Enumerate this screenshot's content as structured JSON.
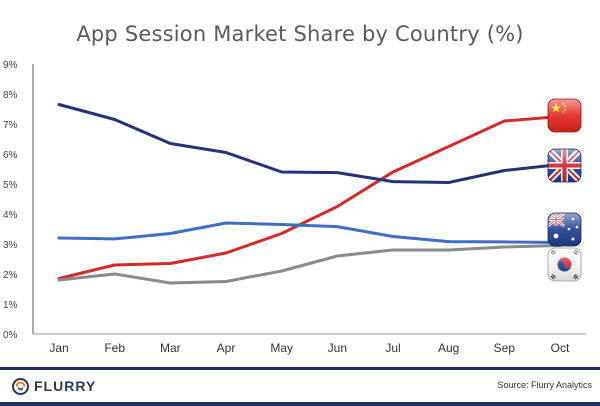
{
  "chart_data": {
    "type": "line",
    "title": "App Session Market Share by Country (%)",
    "xlabel": "",
    "ylabel": "",
    "ylim": [
      0,
      9
    ],
    "yticks": [
      "0%",
      "1%",
      "2%",
      "3%",
      "4%",
      "5%",
      "6%",
      "7%",
      "8%",
      "9%"
    ],
    "categories": [
      "Jan",
      "Feb",
      "Mar",
      "Apr",
      "May",
      "Jun",
      "Jul",
      "Aug",
      "Sep",
      "Oct"
    ],
    "series": [
      {
        "name": "China",
        "color": "#d42a2a",
        "icon": "china-flag-icon",
        "values": [
          1.85,
          2.3,
          2.35,
          2.7,
          3.35,
          4.25,
          5.4,
          6.25,
          7.1,
          7.25
        ]
      },
      {
        "name": "United Kingdom",
        "color": "#23337a",
        "icon": "uk-flag-icon",
        "values": [
          7.65,
          7.15,
          6.35,
          6.05,
          5.4,
          5.38,
          5.08,
          5.05,
          5.45,
          5.65
        ]
      },
      {
        "name": "Australia",
        "color": "#3e6fc4",
        "icon": "australia-flag-icon",
        "values": [
          3.2,
          3.17,
          3.35,
          3.7,
          3.65,
          3.58,
          3.25,
          3.08,
          3.07,
          3.05
        ]
      },
      {
        "name": "South Korea",
        "color": "#8a8a8a",
        "icon": "south-korea-flag-icon",
        "values": [
          1.8,
          2.0,
          1.7,
          1.75,
          2.1,
          2.6,
          2.8,
          2.8,
          2.9,
          2.95
        ]
      }
    ]
  },
  "footer": {
    "logo_text": "FLURRY",
    "logo_icon": "flurry-logo-icon",
    "source": "Source: Flurry Analytics"
  }
}
